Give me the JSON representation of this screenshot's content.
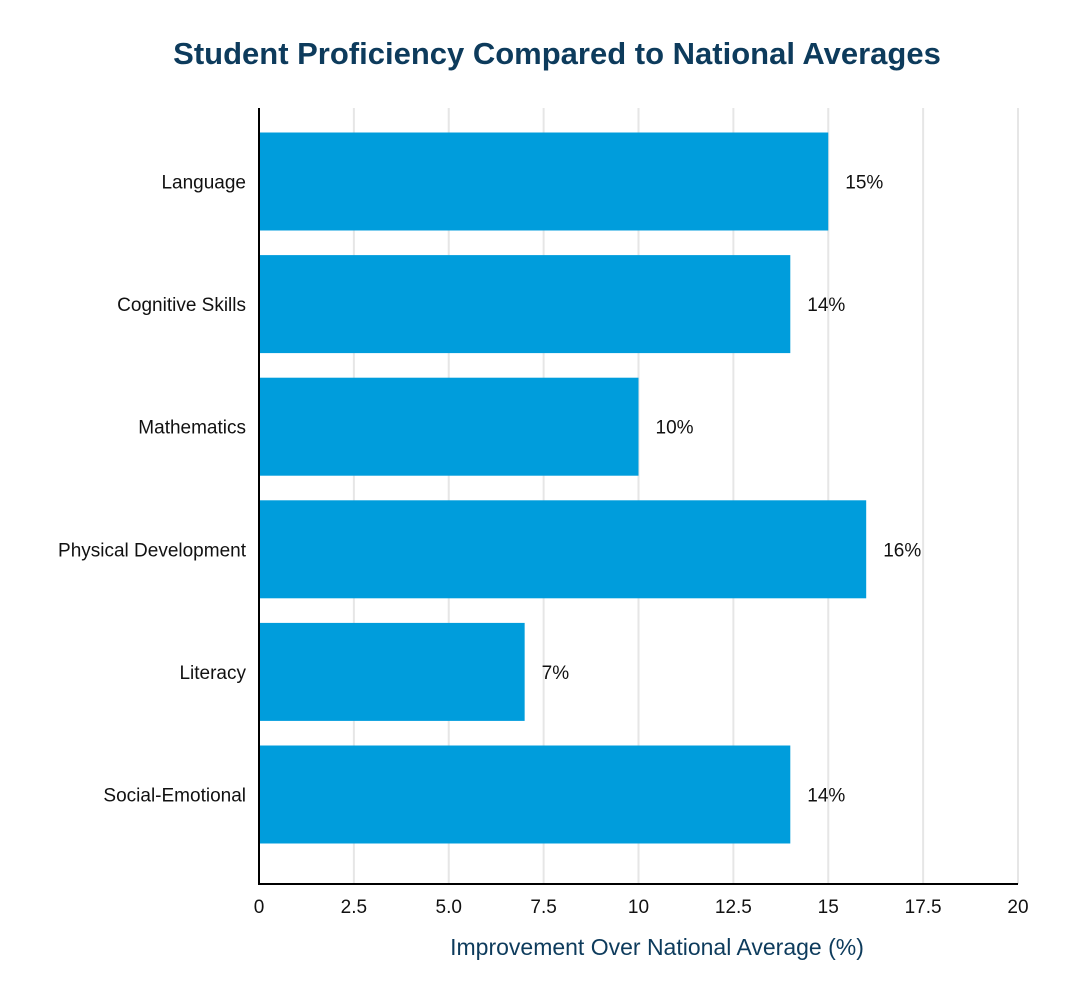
{
  "chart_data": {
    "type": "bar",
    "orientation": "horizontal",
    "title": "Student Proficiency Compared to National Averages",
    "xlabel": "Improvement Over National Average (%)",
    "ylabel": "",
    "categories": [
      "Language",
      "Cognitive Skills",
      "Mathematics",
      "Physical Development",
      "Literacy",
      "Social-Emotional"
    ],
    "values": [
      15,
      14,
      10,
      16,
      7,
      14
    ],
    "value_labels": [
      "15%",
      "14%",
      "10%",
      "16%",
      "7%",
      "14%"
    ],
    "xlim": [
      0,
      20
    ],
    "xticks": [
      0,
      2.5,
      5,
      7.5,
      10,
      12.5,
      15,
      17.5,
      20
    ],
    "xtick_labels": [
      "0",
      "2.5",
      "5.0",
      "7.5",
      "10",
      "12.5",
      "15",
      "17.5",
      "20"
    ],
    "grid": true,
    "bar_color": "#009ddc"
  },
  "colors": {
    "title": "#0d3b5c",
    "axis_title": "#0d3b5c",
    "bar": "#009ddc",
    "grid": "#e6e6e6",
    "text": "#111111"
  }
}
